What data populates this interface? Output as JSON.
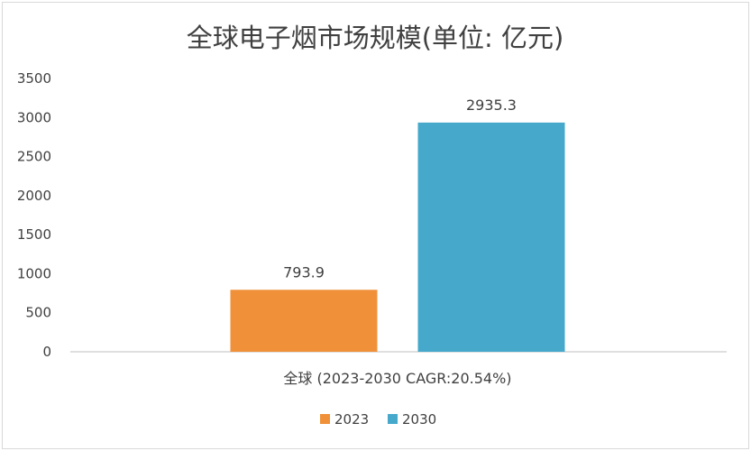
{
  "chart_data": {
    "type": "bar",
    "title": "全球电子烟市场规模(单位: 亿元)",
    "categories": [
      "全球 (2023-2030 CAGR:20.54%)"
    ],
    "series": [
      {
        "name": "2023",
        "values": [
          793.9
        ],
        "color": "#f0913a"
      },
      {
        "name": "2030",
        "values": [
          2935.3
        ],
        "color": "#46a9cb"
      }
    ],
    "data_labels": [
      "793.9",
      "2935.3"
    ],
    "ylim": [
      0,
      3500
    ],
    "yticks": [
      0,
      500,
      1000,
      1500,
      2000,
      2500,
      3000,
      3500
    ],
    "grid": false,
    "legend_position": "bottom"
  }
}
